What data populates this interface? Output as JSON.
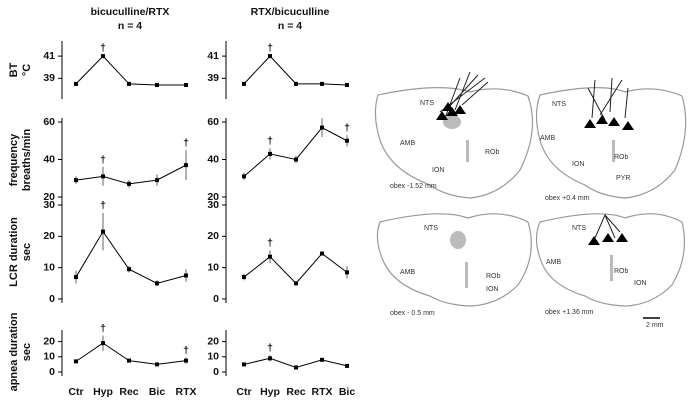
{
  "chart_data": [
    {
      "type": "line",
      "title": "bicuculline/RTX",
      "subtitle": "n = 4",
      "y_label": [
        "BT",
        "°C"
      ],
      "categories": [
        null,
        null,
        null,
        null,
        null
      ],
      "values": [
        38.5,
        41.0,
        38.5,
        38.4,
        38.4
      ],
      "errors": [
        0.1,
        0.1,
        0.1,
        0.1,
        0.1
      ],
      "markers": [
        null,
        "†",
        null,
        null,
        null
      ],
      "ylim": [
        37.5,
        42
      ],
      "yticks": [
        39,
        41
      ],
      "color": "#000000"
    },
    {
      "type": "line",
      "title": "RTX/bicuculline",
      "subtitle": "n = 4",
      "categories": [
        null,
        null,
        null,
        null,
        null
      ],
      "values": [
        38.5,
        41.0,
        38.5,
        38.5,
        38.4
      ],
      "errors": [
        0.1,
        0.1,
        0.1,
        0.1,
        0.1
      ],
      "markers": [
        null,
        "†",
        null,
        null,
        null
      ],
      "ylim": [
        37.5,
        42
      ],
      "yticks": [
        39,
        41
      ],
      "color": "#000000"
    },
    {
      "type": "line",
      "y_label": [
        "frequency",
        "breaths/min"
      ],
      "categories": [
        null,
        null,
        null,
        null,
        null
      ],
      "values": [
        29,
        31,
        27,
        29,
        37
      ],
      "errors": [
        2,
        5,
        2,
        3,
        8
      ],
      "markers": [
        null,
        "†",
        null,
        null,
        "†"
      ],
      "ylim": [
        20,
        60
      ],
      "yticks": [
        20,
        40,
        60
      ],
      "color": "#000000"
    },
    {
      "type": "line",
      "categories": [
        null,
        null,
        null,
        null,
        null
      ],
      "values": [
        31,
        43,
        40,
        57,
        50
      ],
      "errors": [
        2,
        3,
        2,
        5,
        3
      ],
      "markers": [
        null,
        "†",
        null,
        null,
        "†"
      ],
      "ylim": [
        20,
        60
      ],
      "yticks": [
        20,
        40,
        60
      ],
      "color": "#000000"
    },
    {
      "type": "line",
      "y_label": [
        "LCR duration",
        "sec"
      ],
      "categories": [
        null,
        null,
        null,
        null,
        null
      ],
      "values": [
        7,
        21.5,
        9.5,
        5,
        7.5
      ],
      "errors": [
        2,
        6,
        1,
        1,
        2
      ],
      "markers": [
        null,
        "†",
        null,
        null,
        null
      ],
      "ylim": [
        0,
        30
      ],
      "yticks": [
        0,
        10,
        20,
        30
      ],
      "color": "#000000"
    },
    {
      "type": "line",
      "categories": [
        null,
        null,
        null,
        null,
        null
      ],
      "values": [
        7,
        13.5,
        5,
        14.5,
        8.5
      ],
      "errors": [
        1,
        2,
        0.5,
        0.5,
        2
      ],
      "markers": [
        null,
        "†",
        null,
        null,
        null
      ],
      "ylim": [
        0,
        30
      ],
      "yticks": [
        0,
        10,
        20,
        30
      ],
      "color": "#000000"
    },
    {
      "type": "line",
      "y_label": [
        "apnea duration",
        "sec"
      ],
      "categories": [
        "Ctr",
        "Hyp",
        "Rec",
        "Bic",
        "RTX"
      ],
      "values": [
        7,
        19,
        7.5,
        5,
        7.5
      ],
      "errors": [
        1,
        5,
        1,
        0.5,
        2
      ],
      "markers": [
        null,
        "†",
        null,
        null,
        "†"
      ],
      "ylim": [
        0,
        25
      ],
      "yticks": [
        0,
        10,
        20
      ],
      "color": "#000000"
    },
    {
      "type": "line",
      "categories": [
        "Ctr",
        "Hyp",
        "Rec",
        "RTX",
        "Bic"
      ],
      "values": [
        5,
        9,
        3,
        8,
        4
      ],
      "errors": [
        0.5,
        2,
        0.5,
        0.5,
        0.5
      ],
      "markers": [
        null,
        "†",
        null,
        null,
        null
      ],
      "ylim": [
        0,
        25
      ],
      "yticks": [
        0,
        10,
        20
      ],
      "color": "#000000"
    }
  ],
  "diagrams": [
    {
      "caption": "obex -1.52 mm",
      "labels": [
        "NTS",
        "AMB",
        "ION",
        "ROb"
      ]
    },
    {
      "caption": "obex +0.4 mm",
      "labels": [
        "NTS",
        "AMB",
        "ION",
        "ROb",
        "PYR"
      ]
    },
    {
      "caption": "obex - 0.5 mm",
      "labels": [
        "NTS",
        "AMB",
        "ROb",
        "ION"
      ]
    },
    {
      "caption": "obex +1.36 mm",
      "labels": [
        "NTS",
        "AMB",
        "ROb",
        "ION"
      ]
    }
  ],
  "scale_bar": "2 mm"
}
